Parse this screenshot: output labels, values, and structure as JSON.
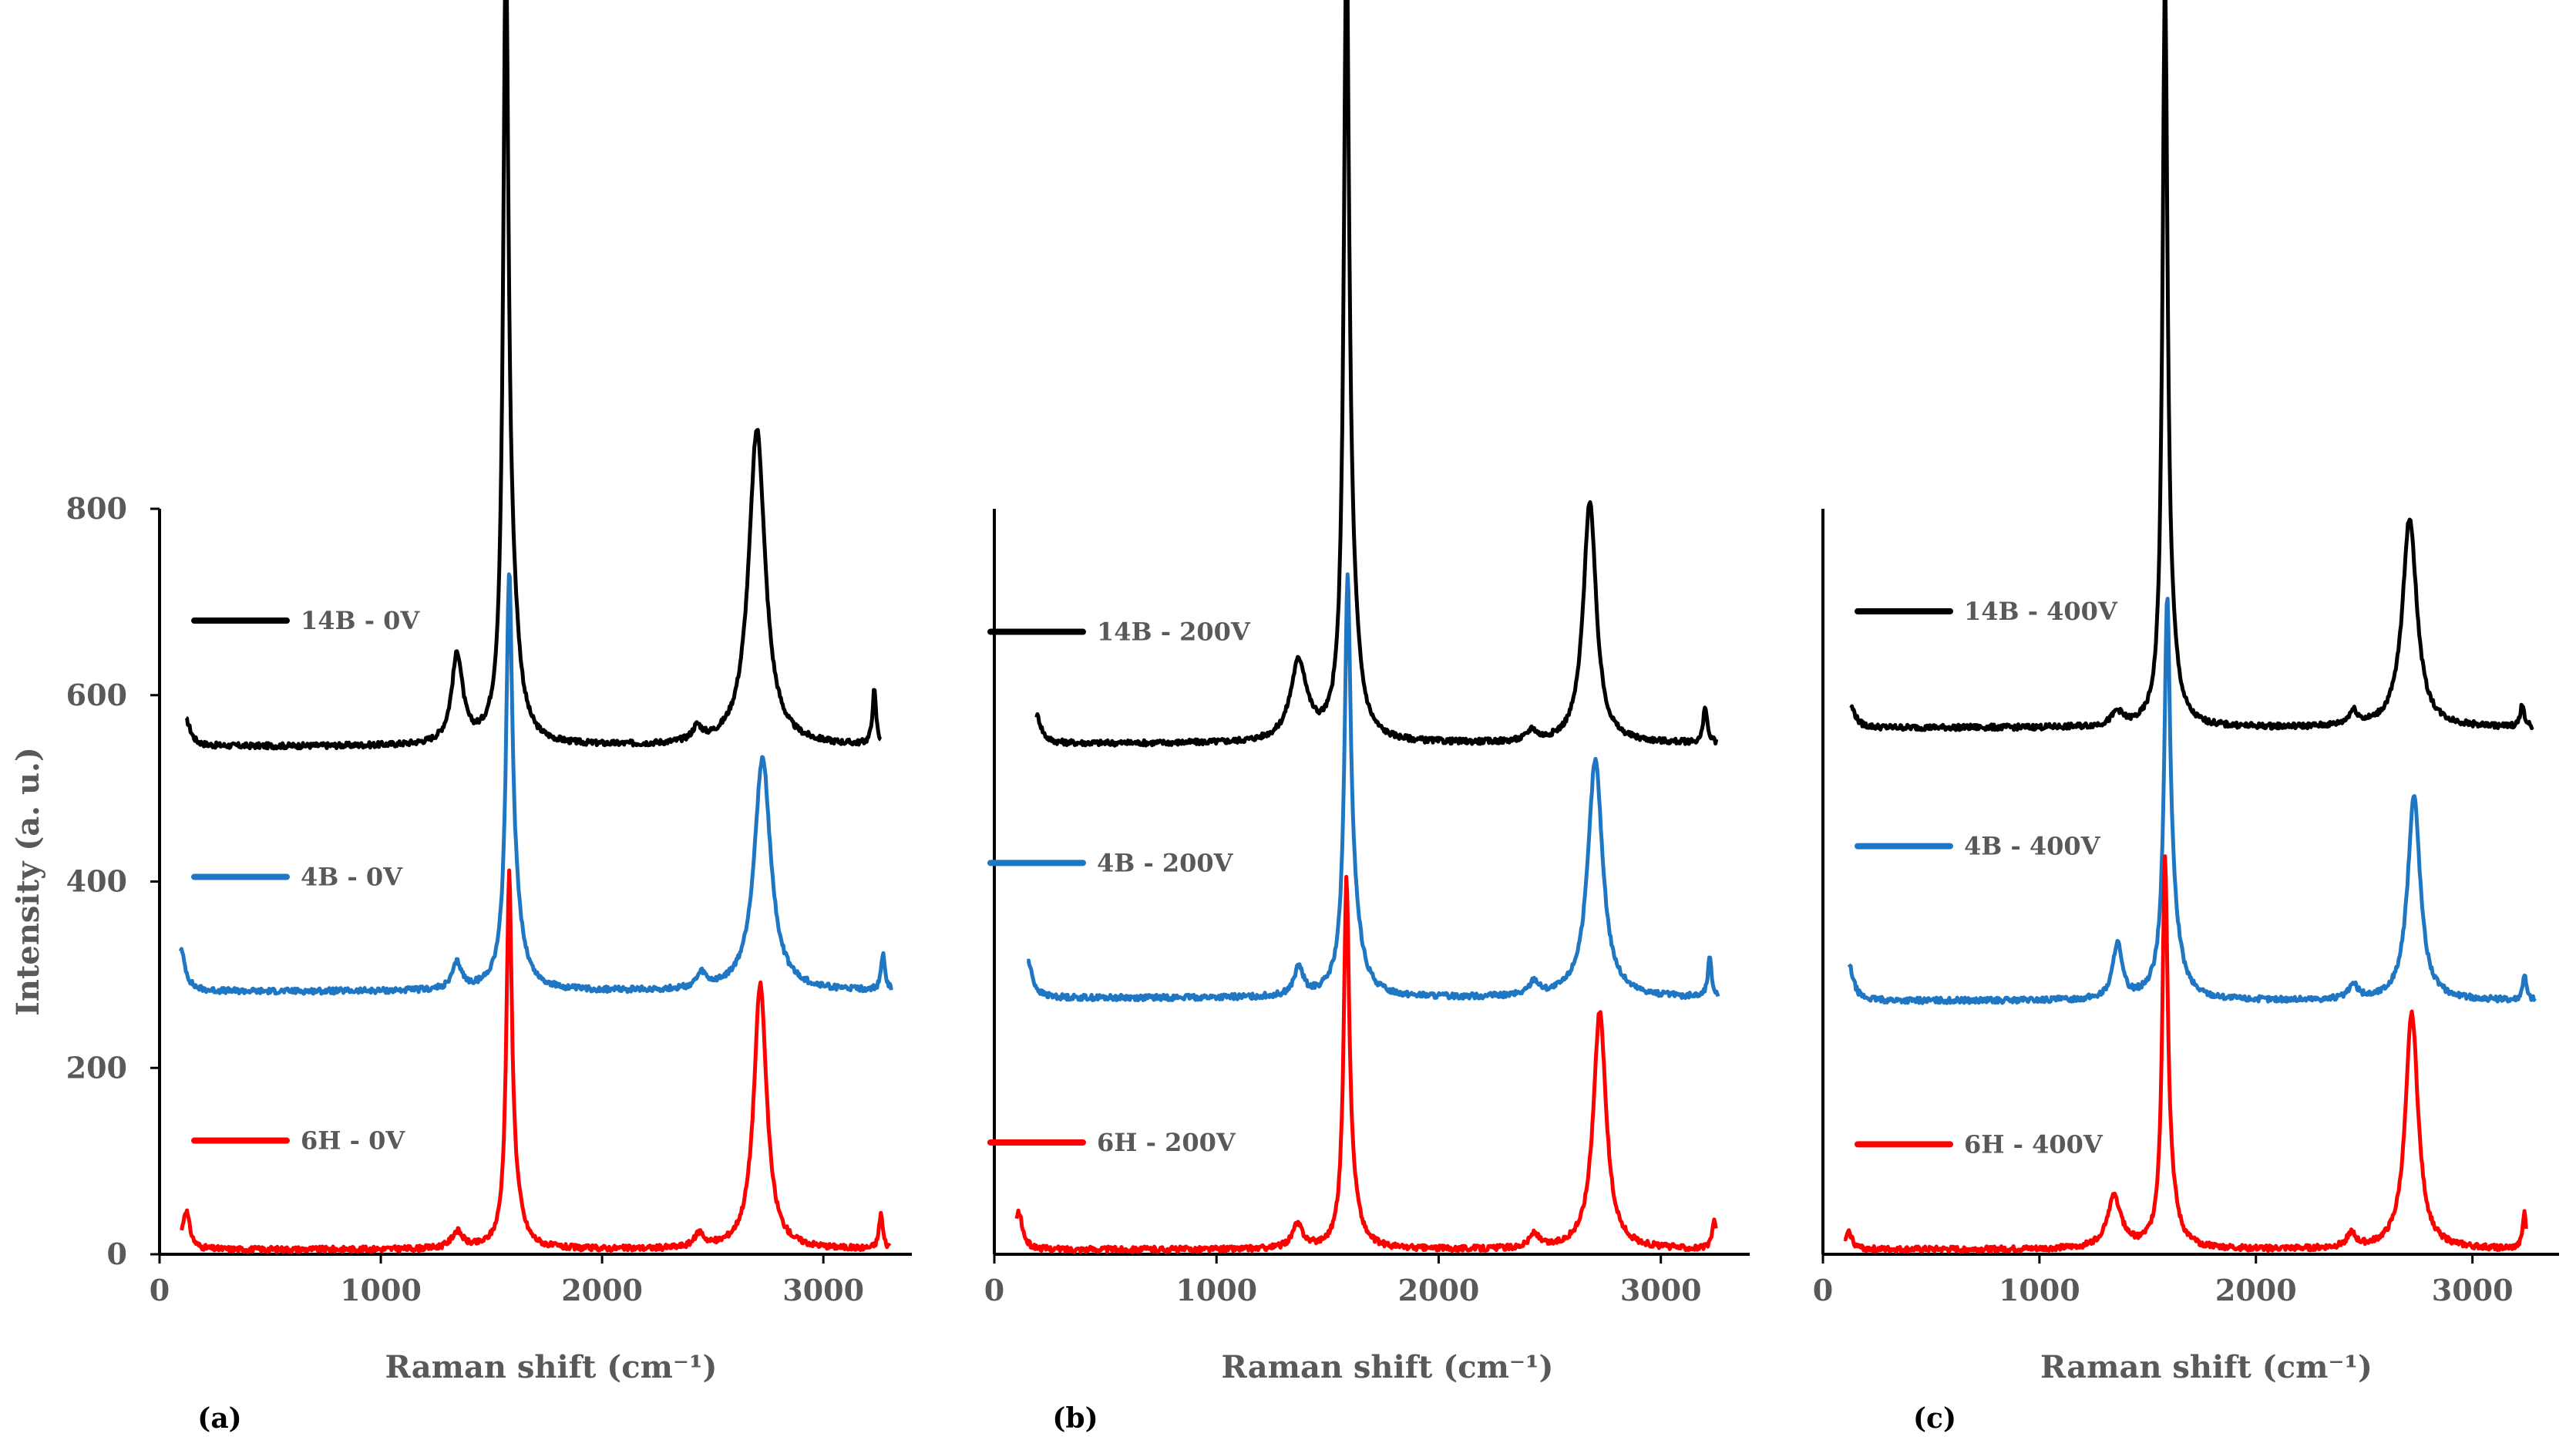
{
  "figure": {
    "y_axis_label": "Intensity (a. u.)",
    "x_axis_label": "Raman shift (cm⁻¹)"
  },
  "colors": {
    "14B": "#000000",
    "4B": "#1f77c4",
    "6H": "#ff0000",
    "axis": "#000000",
    "text": "#595959"
  },
  "chart_data": [
    {
      "type": "line",
      "panel_label": "(a)",
      "xlabel": "Raman shift (cm⁻¹)",
      "ylabel": "Intensity (a. u.)",
      "xlim": [
        0,
        3400
      ],
      "ylim": [
        0,
        800
      ],
      "x_ticks": [
        "0",
        "1000",
        "2000",
        "3000"
      ],
      "y_ticks": [
        "0",
        "200",
        "400",
        "600",
        "800"
      ],
      "grid": false,
      "series": [
        {
          "name": "14B - 0V",
          "key": "14B",
          "baseline": 545,
          "start": 120,
          "end": 3260,
          "peaks": [
            [
              120,
              28,
              25
            ],
            [
              1345,
              95,
              30
            ],
            [
              1565,
              780,
              14
            ],
            [
              1590,
              130,
              40
            ],
            [
              2430,
              15,
              25
            ],
            [
              2700,
              340,
              45
            ],
            [
              3230,
              58,
              10
            ]
          ]
        },
        {
          "name": "4B - 0V",
          "key": "4B",
          "baseline": 282,
          "start": 95,
          "end": 3310,
          "peaks": [
            [
              95,
              45,
              25
            ],
            [
              1345,
              28,
              25
            ],
            [
              1580,
              385,
              16
            ],
            [
              1600,
              80,
              45
            ],
            [
              2450,
              15,
              25
            ],
            [
              2725,
              250,
              45
            ],
            [
              3270,
              40,
              10
            ]
          ]
        },
        {
          "name": "6H - 0V",
          "key": "6H",
          "baseline": 5,
          "start": 100,
          "end": 3300,
          "peaks": [
            [
              120,
              42,
              20
            ],
            [
              1345,
              18,
              30
            ],
            [
              1580,
              375,
              15
            ],
            [
              1605,
              40,
              40
            ],
            [
              2440,
              15,
              25
            ],
            [
              2715,
              285,
              35
            ],
            [
              3260,
              38,
              10
            ]
          ]
        }
      ],
      "legend": [
        {
          "label": "14B - 0V",
          "key": "14B",
          "y": 680
        },
        {
          "label": "4B - 0V",
          "key": "4B",
          "y": 405
        },
        {
          "label": "6H - 0V",
          "key": "6H",
          "y": 122
        }
      ]
    },
    {
      "type": "line",
      "panel_label": "(b)",
      "xlabel": "Raman shift (cm⁻¹)",
      "ylabel": "",
      "xlim": [
        0,
        3400
      ],
      "ylim": [
        0,
        800
      ],
      "x_ticks": [
        "0",
        "1000",
        "2000",
        "3000"
      ],
      "y_ticks": [],
      "grid": false,
      "series": [
        {
          "name": "14B - 200V",
          "key": "14B",
          "baseline": 548,
          "start": 190,
          "end": 3250,
          "peaks": [
            [
              190,
              30,
              25
            ],
            [
              1370,
              85,
              45
            ],
            [
              1585,
              780,
              14
            ],
            [
              1605,
              120,
              40
            ],
            [
              2420,
              12,
              25
            ],
            [
              2680,
              260,
              35
            ],
            [
              3200,
              40,
              10
            ]
          ]
        },
        {
          "name": "4B - 200V",
          "key": "4B",
          "baseline": 275,
          "start": 150,
          "end": 3260,
          "peaks": [
            [
              150,
              40,
              25
            ],
            [
              1370,
              30,
              25
            ],
            [
              1590,
              385,
              16
            ],
            [
              1610,
              80,
              45
            ],
            [
              2430,
              15,
              25
            ],
            [
              2705,
              255,
              40
            ],
            [
              3220,
              42,
              10
            ]
          ]
        },
        {
          "name": "6H - 200V",
          "key": "6H",
          "baseline": 5,
          "start": 100,
          "end": 3250,
          "peaks": [
            [
              110,
              40,
              20
            ],
            [
              1365,
              25,
              30
            ],
            [
              1585,
              370,
              15
            ],
            [
              1610,
              40,
              40
            ],
            [
              2430,
              15,
              25
            ],
            [
              2725,
              255,
              35
            ],
            [
              3240,
              32,
              10
            ]
          ]
        }
      ],
      "legend": [
        {
          "label": "14B - 200V",
          "key": "14B",
          "y": 668
        },
        {
          "label": "4B - 200V",
          "key": "4B",
          "y": 420
        },
        {
          "label": "6H - 200V",
          "key": "6H",
          "y": 120
        }
      ]
    },
    {
      "type": "line",
      "panel_label": "(c)",
      "xlabel": "Raman shift (cm⁻¹)",
      "ylabel": "",
      "xlim": [
        0,
        3400
      ],
      "ylim": [
        0,
        800
      ],
      "x_ticks": [
        "0",
        "1000",
        "2000",
        "3000"
      ],
      "y_ticks": [],
      "grid": false,
      "series": [
        {
          "name": "14B - 400V",
          "key": "14B",
          "baseline": 565,
          "start": 130,
          "end": 3280,
          "peaks": [
            [
              130,
              22,
              25
            ],
            [
              1360,
              15,
              30
            ],
            [
              1580,
              760,
              14
            ],
            [
              1605,
              60,
              40
            ],
            [
              2450,
              15,
              25
            ],
            [
              2710,
              225,
              40
            ],
            [
              3230,
              25,
              10
            ]
          ]
        },
        {
          "name": "4B - 400V",
          "key": "4B",
          "baseline": 272,
          "start": 120,
          "end": 3290,
          "peaks": [
            [
              120,
              38,
              25
            ],
            [
              1360,
              60,
              25
            ],
            [
              1590,
              370,
              16
            ],
            [
              1610,
              75,
              45
            ],
            [
              2450,
              15,
              25
            ],
            [
              2730,
              220,
              35
            ],
            [
              3240,
              28,
              10
            ]
          ]
        },
        {
          "name": "6H - 400V",
          "key": "6H",
          "baseline": 5,
          "start": 100,
          "end": 3250,
          "peaks": [
            [
              120,
              18,
              20
            ],
            [
              1345,
              55,
              40
            ],
            [
              1580,
              385,
              15
            ],
            [
              1600,
              45,
              40
            ],
            [
              2440,
              15,
              25
            ],
            [
              2720,
              255,
              35
            ],
            [
              3240,
              38,
              10
            ]
          ]
        }
      ],
      "legend": [
        {
          "label": "14B - 400V",
          "key": "14B",
          "y": 690
        },
        {
          "label": "4B - 400V",
          "key": "4B",
          "y": 438
        },
        {
          "label": "6H - 400V",
          "key": "6H",
          "y": 118
        }
      ]
    }
  ]
}
